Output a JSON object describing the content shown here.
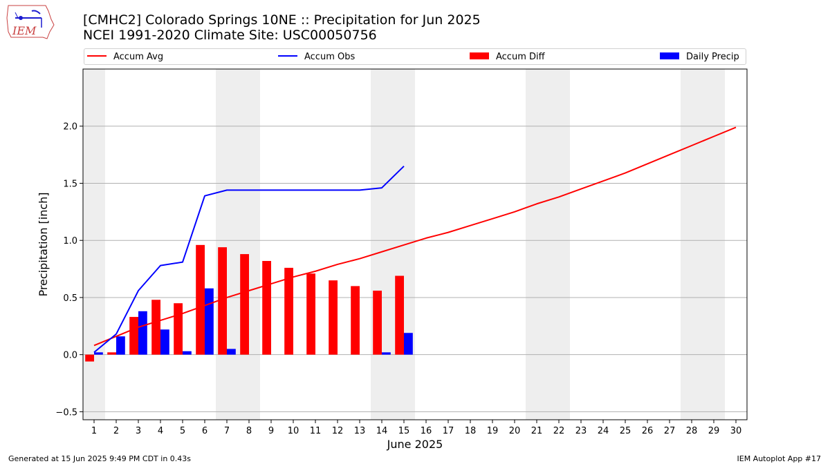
{
  "header": {
    "title_line1": "[CMHC2] Colorado Springs 10NE :: Precipitation for Jun 2025",
    "title_line2": "NCEI 1991-2020 Climate Site: USC00050756",
    "logo_text": "IEM"
  },
  "legend": {
    "accum_avg": "Accum Avg",
    "accum_obs": "Accum Obs",
    "accum_diff": "Accum Diff",
    "daily_precip": "Daily Precip"
  },
  "colors": {
    "avg": "#ff0000",
    "obs": "#0000ff",
    "diff": "#ff0000",
    "daily": "#0000ff",
    "weekend_shade": "#eeeeee",
    "grid": "#b0b0b0"
  },
  "footer": {
    "left": "Generated at 15 Jun 2025 9:49 PM CDT in 0.43s",
    "right": "IEM Autoplot App #17"
  },
  "chart_data": {
    "type": "bar",
    "xlabel": "June 2025",
    "ylabel": "Precipitation [inch]",
    "ylim": [
      -0.57,
      2.5
    ],
    "xlim": [
      0.5,
      30.5
    ],
    "yticks": [
      -0.5,
      0.0,
      0.5,
      1.0,
      1.5,
      2.0
    ],
    "ytick_labels": [
      "−0.5",
      "0.0",
      "0.5",
      "1.0",
      "1.5",
      "2.0"
    ],
    "days": [
      1,
      2,
      3,
      4,
      5,
      6,
      7,
      8,
      9,
      10,
      11,
      12,
      13,
      14,
      15,
      16,
      17,
      18,
      19,
      20,
      21,
      22,
      23,
      24,
      25,
      26,
      27,
      28,
      29,
      30
    ],
    "grid": "horizontal",
    "legend_position": "top",
    "weekend_days": [
      1,
      7,
      8,
      14,
      15,
      21,
      22,
      28,
      29
    ],
    "series": [
      {
        "name": "Accum Avg",
        "type": "line",
        "values": [
          0.08,
          0.16,
          0.24,
          0.3,
          0.36,
          0.43,
          0.5,
          0.56,
          0.62,
          0.68,
          0.73,
          0.79,
          0.84,
          0.9,
          0.96,
          1.02,
          1.07,
          1.13,
          1.19,
          1.25,
          1.32,
          1.38,
          1.45,
          1.52,
          1.59,
          1.67,
          1.75,
          1.83,
          1.91,
          1.99
        ]
      },
      {
        "name": "Accum Obs",
        "type": "line",
        "values": [
          0.02,
          0.18,
          0.56,
          0.78,
          0.81,
          1.39,
          1.44,
          1.44,
          1.44,
          1.44,
          1.44,
          1.44,
          1.44,
          1.46,
          1.65
        ]
      },
      {
        "name": "Accum Diff",
        "type": "bar",
        "values": [
          -0.06,
          0.02,
          0.33,
          0.48,
          0.45,
          0.96,
          0.94,
          0.88,
          0.82,
          0.76,
          0.71,
          0.65,
          0.6,
          0.56,
          0.69
        ]
      },
      {
        "name": "Daily Precip",
        "type": "bar",
        "values": [
          0.02,
          0.16,
          0.38,
          0.22,
          0.03,
          0.58,
          0.05,
          0.0,
          0.0,
          0.0,
          0.0,
          0.0,
          0.0,
          0.02,
          0.19
        ]
      }
    ]
  }
}
